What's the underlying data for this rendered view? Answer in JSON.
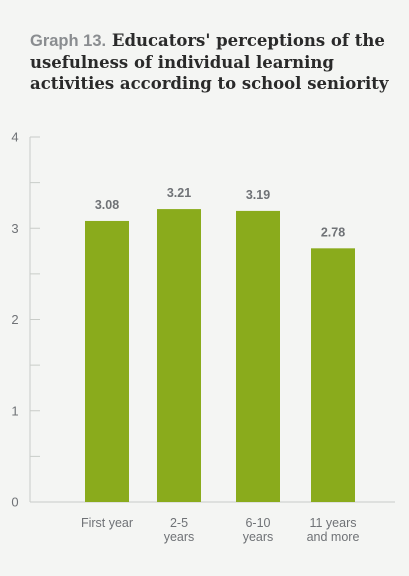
{
  "chart_data": {
    "type": "bar",
    "title_prefix": "Graph 13.",
    "title": "Educators' perceptions of the usefulness of individual learning activities according to school seniority",
    "categories": [
      [
        "First year"
      ],
      [
        "2-5",
        "years"
      ],
      [
        "6-10",
        "years"
      ],
      [
        "11 years",
        "and more"
      ]
    ],
    "values": [
      3.08,
      3.21,
      3.19,
      2.78
    ],
    "value_labels": [
      "3.08",
      "3.21",
      "3.19",
      "2.78"
    ],
    "ylim": [
      0,
      4
    ],
    "yticks": [
      0,
      1,
      2,
      3,
      4
    ],
    "ytick_labels": [
      "0",
      "1",
      "2",
      "3",
      "4"
    ],
    "minor_ticks": [
      0.5,
      1.5,
      2.5,
      3.5
    ],
    "grid": false,
    "xlabel": "",
    "ylabel": "",
    "colors": {
      "bar": "#8aab1c",
      "axis": "#c9ccc8",
      "text": "#6f7276"
    }
  }
}
